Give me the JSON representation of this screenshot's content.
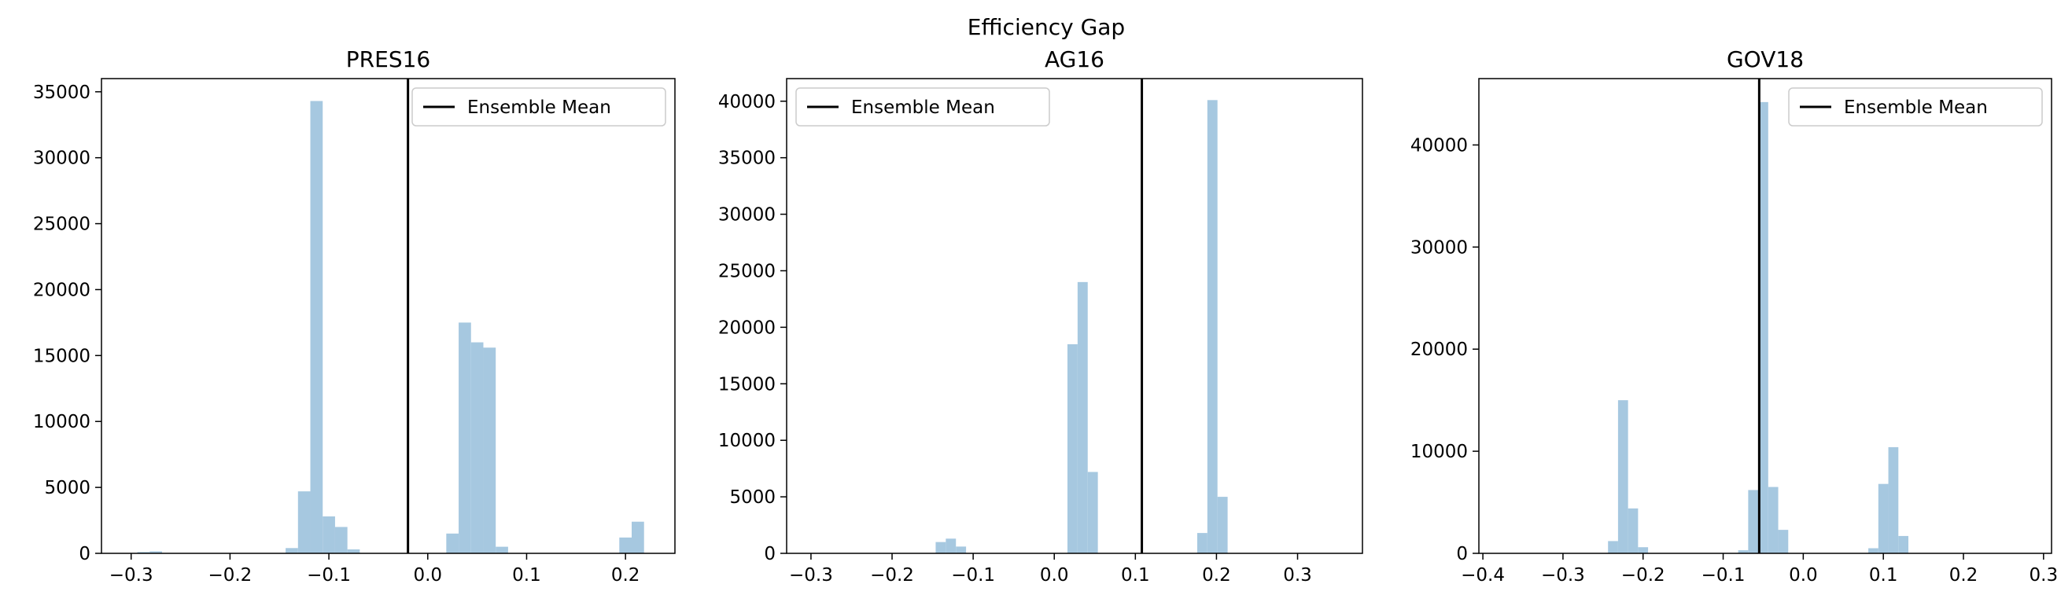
{
  "figure": {
    "suptitle": "Efficiency Gap"
  },
  "chart_data": [
    {
      "type": "bar",
      "title": "PRES16",
      "xlim": [
        -0.33,
        0.25
      ],
      "ylim": [
        0,
        36000
      ],
      "xticks": [
        -0.3,
        -0.2,
        -0.1,
        0.0,
        0.1,
        0.2
      ],
      "xtick_labels": [
        "−0.3",
        "−0.2",
        "−0.1",
        "0.0",
        "0.1",
        "0.2"
      ],
      "yticks": [
        0,
        5000,
        10000,
        15000,
        20000,
        25000,
        30000,
        35000
      ],
      "ytick_labels": [
        "0",
        "5000",
        "10000",
        "15000",
        "20000",
        "25000",
        "30000",
        "35000"
      ],
      "bin_width": 0.0125,
      "bins": [
        {
          "x": -0.2875,
          "count": 100
        },
        {
          "x": -0.275,
          "count": 150
        },
        {
          "x": -0.1375,
          "count": 400
        },
        {
          "x": -0.125,
          "count": 4700
        },
        {
          "x": -0.1125,
          "count": 34300
        },
        {
          "x": -0.1,
          "count": 2800
        },
        {
          "x": -0.0875,
          "count": 2000
        },
        {
          "x": -0.075,
          "count": 300
        },
        {
          "x": 0.025,
          "count": 1500
        },
        {
          "x": 0.0375,
          "count": 17500
        },
        {
          "x": 0.05,
          "count": 16000
        },
        {
          "x": 0.0625,
          "count": 15600
        },
        {
          "x": 0.075,
          "count": 500
        },
        {
          "x": 0.2,
          "count": 1200
        },
        {
          "x": 0.2125,
          "count": 2400
        }
      ],
      "mean_line": -0.02,
      "legend": {
        "label": "Ensemble Mean",
        "position": "upper right"
      }
    },
    {
      "type": "bar",
      "title": "AG16",
      "xlim": [
        -0.33,
        0.38
      ],
      "ylim": [
        0,
        42000
      ],
      "xticks": [
        -0.3,
        -0.2,
        -0.1,
        0.0,
        0.1,
        0.2,
        0.3
      ],
      "xtick_labels": [
        "−0.3",
        "−0.2",
        "−0.1",
        "0.0",
        "0.1",
        "0.2",
        "0.3"
      ],
      "yticks": [
        0,
        5000,
        10000,
        15000,
        20000,
        25000,
        30000,
        35000,
        40000
      ],
      "ytick_labels": [
        "0",
        "5000",
        "10000",
        "15000",
        "20000",
        "25000",
        "30000",
        "35000",
        "40000"
      ],
      "bin_width": 0.0125,
      "bins": [
        {
          "x": -0.14,
          "count": 1000
        },
        {
          "x": -0.1275,
          "count": 1300
        },
        {
          "x": -0.115,
          "count": 600
        },
        {
          "x": 0.0225,
          "count": 18500
        },
        {
          "x": 0.035,
          "count": 24000
        },
        {
          "x": 0.0475,
          "count": 7200
        },
        {
          "x": 0.1825,
          "count": 1800
        },
        {
          "x": 0.195,
          "count": 40100
        },
        {
          "x": 0.2075,
          "count": 5000
        }
      ],
      "mean_line": 0.108,
      "legend": {
        "label": "Ensemble Mean",
        "position": "upper left"
      }
    },
    {
      "type": "bar",
      "title": "GOV18",
      "xlim": [
        -0.405,
        0.31
      ],
      "ylim": [
        0,
        46500
      ],
      "xticks": [
        -0.4,
        -0.3,
        -0.2,
        -0.1,
        0.0,
        0.1,
        0.2,
        0.3
      ],
      "xtick_labels": [
        "−0.4",
        "−0.3",
        "−0.2",
        "−0.1",
        "0.0",
        "0.1",
        "0.2",
        "0.3"
      ],
      "yticks": [
        0,
        10000,
        20000,
        30000,
        40000
      ],
      "ytick_labels": [
        "0",
        "10000",
        "20000",
        "30000",
        "40000"
      ],
      "bin_width": 0.0125,
      "bins": [
        {
          "x": -0.2375,
          "count": 1200
        },
        {
          "x": -0.225,
          "count": 15000
        },
        {
          "x": -0.2125,
          "count": 4400
        },
        {
          "x": -0.2,
          "count": 600
        },
        {
          "x": -0.075,
          "count": 300
        },
        {
          "x": -0.0625,
          "count": 6200
        },
        {
          "x": -0.05,
          "count": 44200
        },
        {
          "x": -0.0375,
          "count": 6500
        },
        {
          "x": -0.025,
          "count": 2300
        },
        {
          "x": 0.0875,
          "count": 500
        },
        {
          "x": 0.1,
          "count": 6800
        },
        {
          "x": 0.1125,
          "count": 10400
        },
        {
          "x": 0.125,
          "count": 1700
        }
      ],
      "mean_line": -0.055,
      "legend": {
        "label": "Ensemble Mean",
        "position": "upper right"
      }
    }
  ],
  "colors": {
    "bar": "#a6c8e0",
    "mean_line": "#000000",
    "axes": "#000000"
  }
}
